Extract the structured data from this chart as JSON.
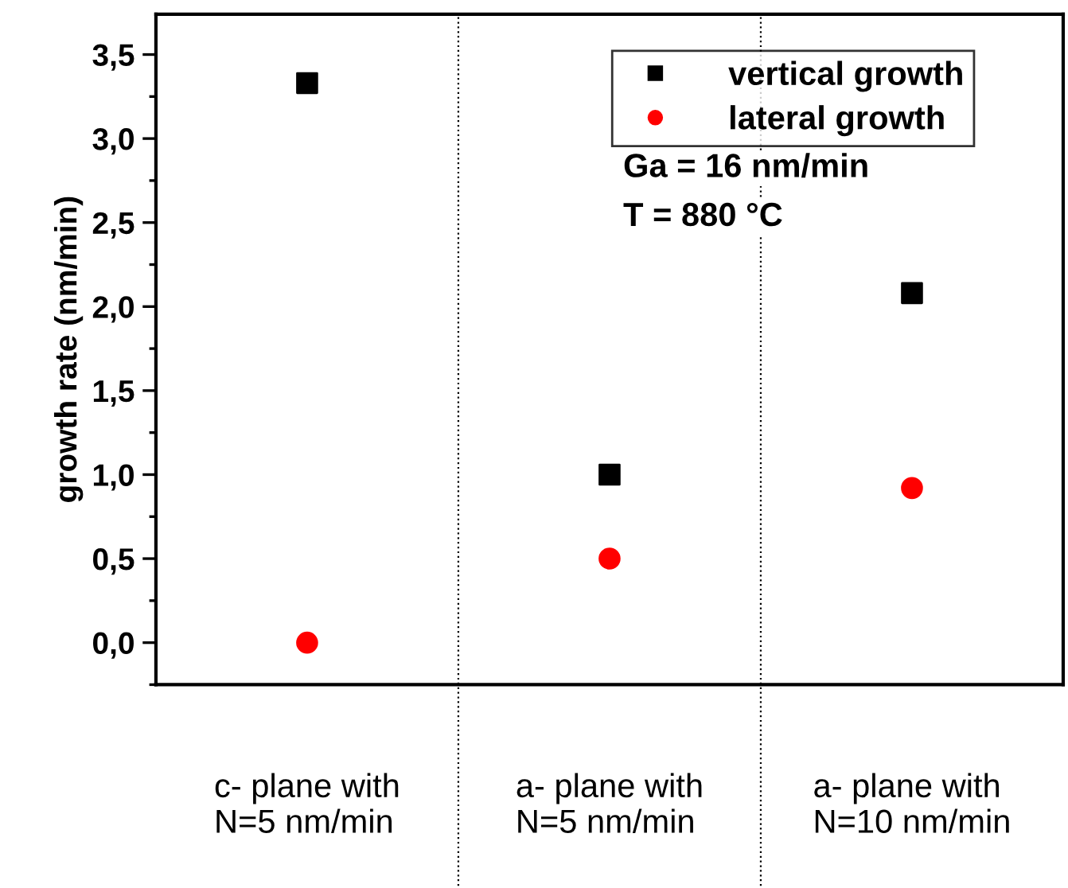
{
  "chart_data": {
    "type": "scatter",
    "ylabel": "growth rate (nm/min)",
    "categories": [
      "c- plane with\nN=5 nm/min",
      "a- plane with\nN=5 nm/min",
      "a- plane with\nN=10 nm/min"
    ],
    "series": [
      {
        "name": "vertical growth",
        "color": "#000000",
        "marker": "square",
        "values": [
          3.33,
          1.0,
          2.08
        ]
      },
      {
        "name": "lateral growth",
        "color": "#ff0000",
        "marker": "circle",
        "values": [
          0.0,
          0.5,
          0.92
        ]
      }
    ],
    "ylim": [
      -0.25,
      3.74
    ],
    "yticks": [
      {
        "value": 0,
        "label": "0,0"
      },
      {
        "value": 0.5,
        "label": "0,5"
      },
      {
        "value": 1,
        "label": "1,0"
      },
      {
        "value": 1.5,
        "label": "1,5"
      },
      {
        "value": 2,
        "label": "2,0"
      },
      {
        "value": 2.5,
        "label": "2,5"
      },
      {
        "value": 3,
        "label": "3,0"
      },
      {
        "value": 3.5,
        "label": "3,5"
      }
    ],
    "annotations": [
      "Ga = 16 nm/min",
      "T = 880 °C"
    ],
    "legend": "top right",
    "grid": false
  }
}
